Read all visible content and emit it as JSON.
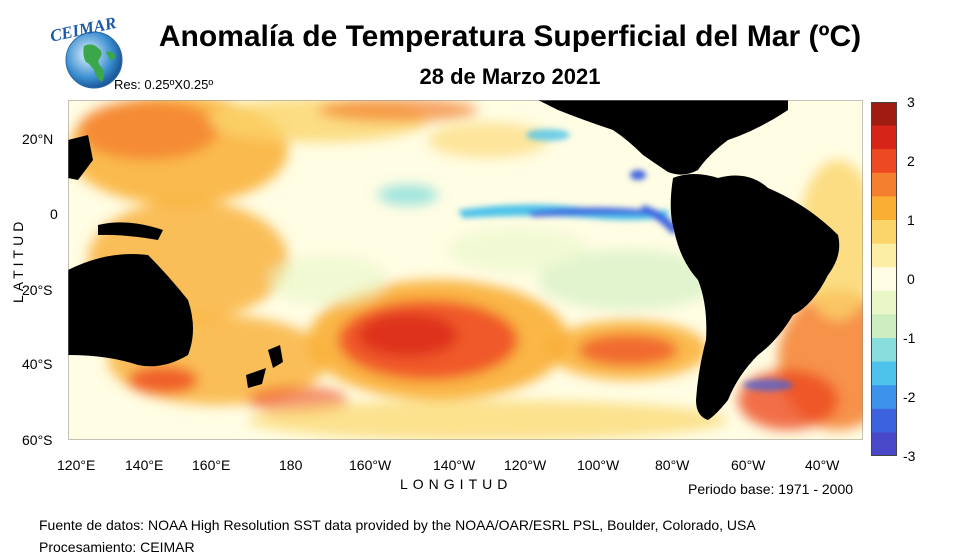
{
  "header": {
    "logo_text": "CEIMAR",
    "title": "Anomalía de Temperatura Superficial del Mar (ºC)",
    "date": "28 de Marzo 2021",
    "resolution": "Res: 0.25ºX0.25º"
  },
  "axes": {
    "ylabel": "LATITUD",
    "xlabel": "LONGITUD",
    "lat_ticks": [
      "20°N",
      "0",
      "20°S",
      "40°S",
      "60°S"
    ],
    "lon_ticks": [
      "120°E",
      "140°E",
      "160°E",
      "180",
      "160°W",
      "140°W",
      "120°W",
      "100°W",
      "80°W",
      "60°W",
      "40°W"
    ]
  },
  "colorbar": {
    "labels": [
      "3",
      "2",
      "1",
      "0",
      "-1",
      "-2",
      "-3"
    ],
    "colors": [
      "#a01c10",
      "#d62418",
      "#ee4a22",
      "#f47f2e",
      "#f9ae34",
      "#fbd56a",
      "#fdeea6",
      "#fffde4",
      "#e8f6c8",
      "#cdeec0",
      "#86dddc",
      "#4dc2ea",
      "#3d93ec",
      "#3c62e0",
      "#4848c8"
    ]
  },
  "map_colors": {
    "land": "#000000",
    "neutral": "#fffde4"
  },
  "footer": {
    "base_period": "Periodo base: 1971 - 2000",
    "source": "Fuente de datos: NOAA High Resolution SST data provided by the NOAA/OAR/ESRL PSL, Boulder, Colorado, USA",
    "processing": "Procesamiento: CEIMAR"
  }
}
